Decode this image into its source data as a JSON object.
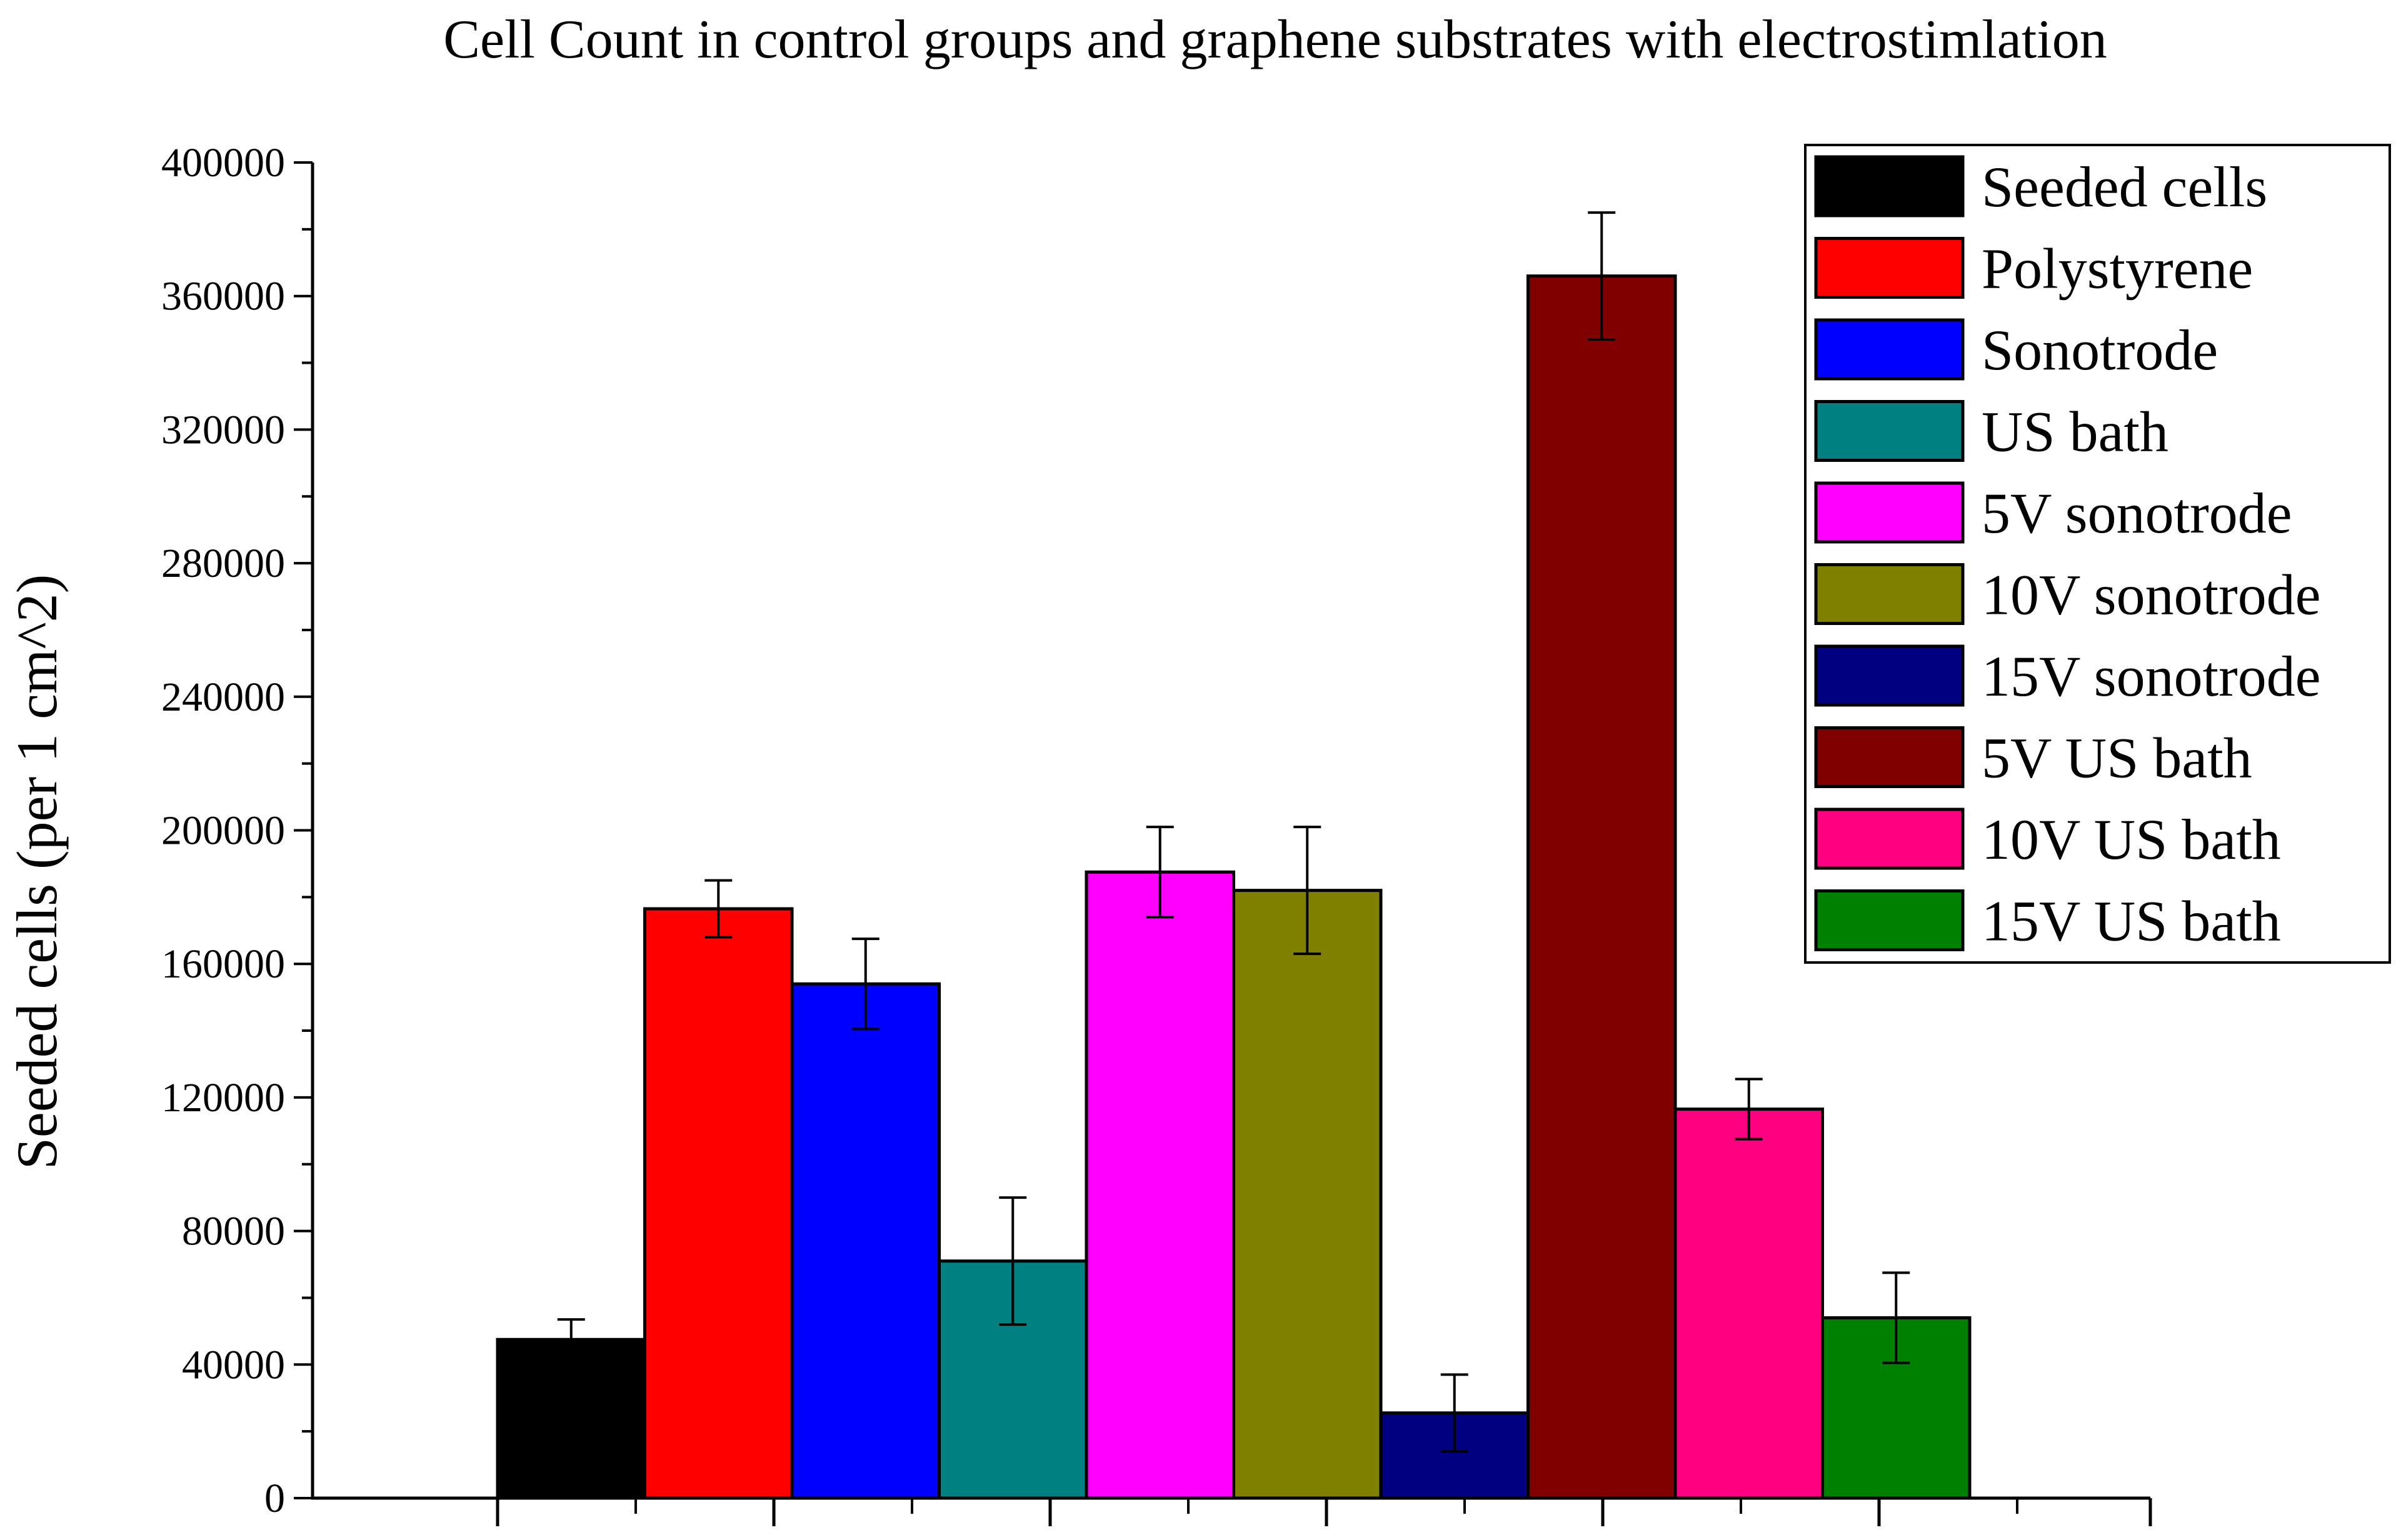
{
  "chart_data": {
    "type": "bar",
    "title": "Cell Count in control groups and graphene substrates with electrostimlation",
    "xlabel": "",
    "ylabel": "Seeded cells (per 1 cm^2)",
    "ylim": [
      0,
      400000
    ],
    "yticks": [
      0,
      40000,
      80000,
      120000,
      160000,
      200000,
      240000,
      280000,
      320000,
      360000,
      400000
    ],
    "ytick_labels": [
      "0",
      "40000",
      "80000",
      "120000",
      "160000",
      "200000",
      "240000",
      "280000",
      "320000",
      "360000",
      "400000"
    ],
    "grid": false,
    "legend_position": "top-right",
    "series": [
      {
        "name": "Seeded cells",
        "value": 47500,
        "error": 6000,
        "color": "#000000"
      },
      {
        "name": "Polystyrene",
        "value": 176500,
        "error": 8500,
        "color": "#ff0000"
      },
      {
        "name": "Sonotrode",
        "value": 154000,
        "error": 13500,
        "color": "#0000ff"
      },
      {
        "name": "US bath",
        "value": 71000,
        "error": 19000,
        "color": "#008080"
      },
      {
        "name": "5V sonotrode",
        "value": 187500,
        "error": 13500,
        "color": "#ff00ff"
      },
      {
        "name": "10V sonotrode",
        "value": 182000,
        "error": 19000,
        "color": "#808000"
      },
      {
        "name": "15V sonotrode",
        "value": 25500,
        "error": 11500,
        "color": "#000080"
      },
      {
        "name": "5V US bath",
        "value": 366000,
        "error": 19000,
        "color": "#800000"
      },
      {
        "name": "10V US bath",
        "value": 116500,
        "error": 9000,
        "color": "#ff0080"
      },
      {
        "name": "15V US bath",
        "value": 54000,
        "error": 13500,
        "color": "#008000"
      }
    ]
  }
}
